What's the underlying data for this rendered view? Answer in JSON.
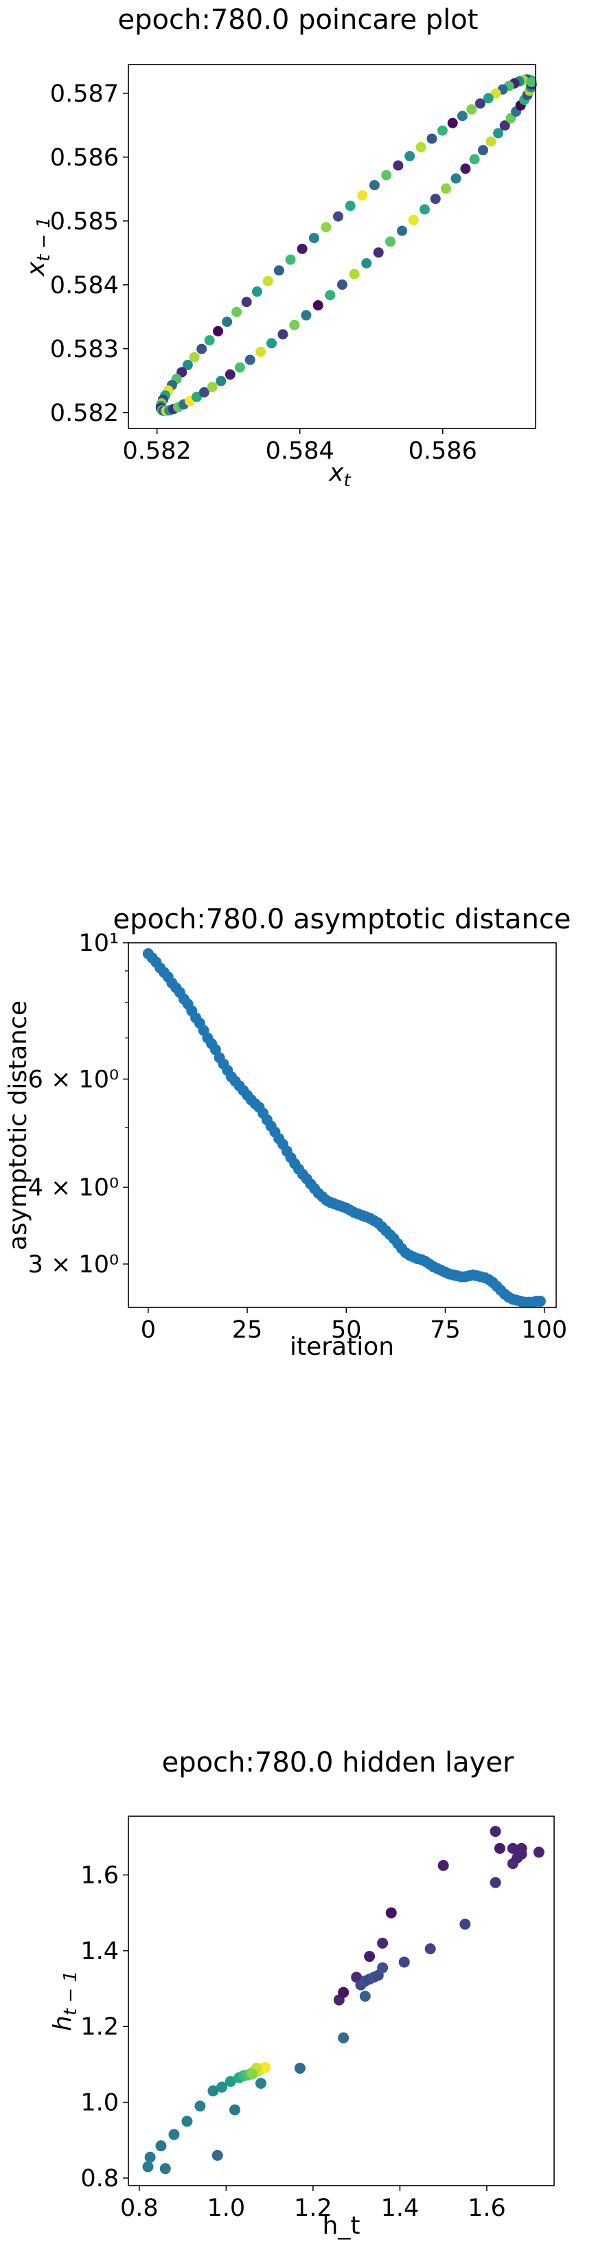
{
  "chart_data": [
    {
      "type": "scatter",
      "title": "epoch:780.0 poincare plot",
      "xlabel": "x_t",
      "ylabel": "x_{t-1}",
      "xlim": [
        0.5816,
        0.5873
      ],
      "ylim": [
        0.58175,
        0.58745
      ],
      "xticks": [
        0.582,
        0.584,
        0.586
      ],
      "xtick_labels": [
        "0.582",
        "0.584",
        "0.586"
      ],
      "yticks": [
        0.582,
        0.583,
        0.584,
        0.585,
        0.586,
        0.587
      ],
      "ytick_labels": [
        "0.582",
        "0.583",
        "0.584",
        "0.585",
        "0.586",
        "0.587"
      ],
      "colormap": "viridis",
      "shape": "ellipse",
      "ellipse_center": [
        0.58465,
        0.58462
      ],
      "point_count": 96
    },
    {
      "type": "scatter",
      "title": "epoch:780.0 asymptotic distance",
      "xlabel": "iteration",
      "ylabel": "asymptotic distance",
      "yscale": "log",
      "xlim": [
        -5,
        103
      ],
      "ylim": [
        2.55,
        10.0
      ],
      "xticks": [
        0,
        25,
        50,
        75,
        100
      ],
      "xtick_labels": [
        "0",
        "25",
        "50",
        "75",
        "100"
      ],
      "yticks": [
        3,
        4,
        6,
        10
      ],
      "ytick_labels": [
        "3 × 10⁰",
        "4 × 10⁰",
        "6 × 10⁰",
        "10¹"
      ],
      "color": "#1f77b4",
      "x": [
        0,
        1,
        2,
        3,
        4,
        5,
        6,
        7,
        8,
        9,
        10,
        11,
        12,
        13,
        14,
        15,
        16,
        17,
        18,
        19,
        20,
        21,
        22,
        23,
        24,
        25,
        26,
        27,
        28,
        29,
        30,
        31,
        32,
        33,
        34,
        35,
        36,
        37,
        38,
        39,
        40,
        41,
        42,
        43,
        44,
        45,
        46,
        47,
        48,
        49,
        50,
        51,
        52,
        53,
        54,
        55,
        56,
        57,
        58,
        59,
        60,
        61,
        62,
        63,
        64,
        65,
        66,
        67,
        68,
        69,
        70,
        71,
        72,
        73,
        74,
        75,
        76,
        77,
        78,
        79,
        80,
        81,
        82,
        83,
        84,
        85,
        86,
        87,
        88,
        89,
        90,
        91,
        92,
        93,
        94,
        95,
        96,
        97,
        98,
        99
      ],
      "y": [
        9.6,
        9.45,
        9.3,
        9.1,
        8.95,
        8.8,
        8.6,
        8.45,
        8.3,
        8.1,
        7.95,
        7.75,
        7.55,
        7.4,
        7.2,
        7.0,
        6.85,
        6.7,
        6.5,
        6.35,
        6.2,
        6.05,
        5.95,
        5.85,
        5.75,
        5.65,
        5.55,
        5.47,
        5.4,
        5.28,
        5.15,
        5.03,
        4.92,
        4.8,
        4.7,
        4.58,
        4.47,
        4.37,
        4.28,
        4.2,
        4.13,
        4.05,
        3.98,
        3.91,
        3.86,
        3.81,
        3.78,
        3.76,
        3.74,
        3.72,
        3.7,
        3.67,
        3.64,
        3.62,
        3.6,
        3.58,
        3.56,
        3.53,
        3.5,
        3.45,
        3.4,
        3.35,
        3.3,
        3.24,
        3.18,
        3.13,
        3.1,
        3.08,
        3.06,
        3.05,
        3.03,
        3.0,
        2.97,
        2.95,
        2.93,
        2.91,
        2.89,
        2.88,
        2.87,
        2.86,
        2.86,
        2.87,
        2.88,
        2.87,
        2.86,
        2.85,
        2.83,
        2.8,
        2.76,
        2.72,
        2.68,
        2.65,
        2.63,
        2.62,
        2.61,
        2.6,
        2.6,
        2.6,
        2.61,
        2.61
      ]
    },
    {
      "type": "scatter",
      "title": "epoch:780.0 hidden layer",
      "xlabel": "h_t",
      "ylabel": "h_{t-1}",
      "xlim": [
        0.775,
        1.755
      ],
      "ylim": [
        0.78,
        1.755
      ],
      "xticks": [
        0.8,
        1.0,
        1.2,
        1.4,
        1.6
      ],
      "xtick_labels": [
        "0.8",
        "1.0",
        "1.2",
        "1.4",
        "1.6"
      ],
      "yticks": [
        0.8,
        1.0,
        1.2,
        1.4,
        1.6
      ],
      "ytick_labels": [
        "0.8",
        "1.0",
        "1.2",
        "1.4",
        "1.6"
      ],
      "colormap": "viridis",
      "points": [
        [
          0.82,
          0.83,
          0.42
        ],
        [
          0.825,
          0.855,
          0.42
        ],
        [
          0.86,
          0.825,
          0.4
        ],
        [
          0.85,
          0.885,
          0.4
        ],
        [
          0.88,
          0.915,
          0.42
        ],
        [
          0.91,
          0.95,
          0.43
        ],
        [
          0.94,
          0.99,
          0.45
        ],
        [
          0.97,
          1.03,
          0.47
        ],
        [
          0.99,
          1.04,
          0.5
        ],
        [
          1.01,
          1.055,
          0.55
        ],
        [
          1.03,
          1.065,
          0.6
        ],
        [
          1.04,
          1.07,
          0.67
        ],
        [
          1.05,
          1.072,
          0.72
        ],
        [
          1.06,
          1.078,
          0.78
        ],
        [
          1.07,
          1.082,
          0.85
        ],
        [
          1.075,
          1.085,
          0.9
        ],
        [
          1.08,
          1.088,
          0.95
        ],
        [
          1.085,
          1.09,
          0.98
        ],
        [
          1.09,
          1.092,
          1.0
        ],
        [
          1.07,
          1.09,
          0.92
        ],
        [
          1.06,
          1.075,
          0.82
        ],
        [
          1.08,
          1.05,
          0.45
        ],
        [
          1.02,
          0.98,
          0.4
        ],
        [
          0.98,
          0.86,
          0.35
        ],
        [
          1.17,
          1.09,
          0.35
        ],
        [
          1.27,
          1.17,
          0.35
        ],
        [
          1.26,
          1.27,
          0.1
        ],
        [
          1.27,
          1.29,
          0.05
        ],
        [
          1.3,
          1.33,
          0.12
        ],
        [
          1.31,
          1.31,
          0.22
        ],
        [
          1.32,
          1.32,
          0.25
        ],
        [
          1.33,
          1.325,
          0.22
        ],
        [
          1.34,
          1.33,
          0.25
        ],
        [
          1.35,
          1.335,
          0.22
        ],
        [
          1.36,
          1.355,
          0.25
        ],
        [
          1.32,
          1.28,
          0.3
        ],
        [
          1.33,
          1.385,
          0.08
        ],
        [
          1.36,
          1.42,
          0.12
        ],
        [
          1.38,
          1.5,
          0.05
        ],
        [
          1.41,
          1.37,
          0.2
        ],
        [
          1.47,
          1.405,
          0.2
        ],
        [
          1.5,
          1.625,
          0.08
        ],
        [
          1.55,
          1.47,
          0.2
        ],
        [
          1.62,
          1.715,
          0.1
        ],
        [
          1.63,
          1.67,
          0.08
        ],
        [
          1.62,
          1.58,
          0.15
        ],
        [
          1.66,
          1.63,
          0.12
        ],
        [
          1.67,
          1.645,
          0.1
        ],
        [
          1.68,
          1.655,
          0.1
        ],
        [
          1.72,
          1.66,
          0.1
        ],
        [
          1.66,
          1.67,
          0.1
        ],
        [
          1.68,
          1.67,
          0.1
        ]
      ]
    }
  ]
}
